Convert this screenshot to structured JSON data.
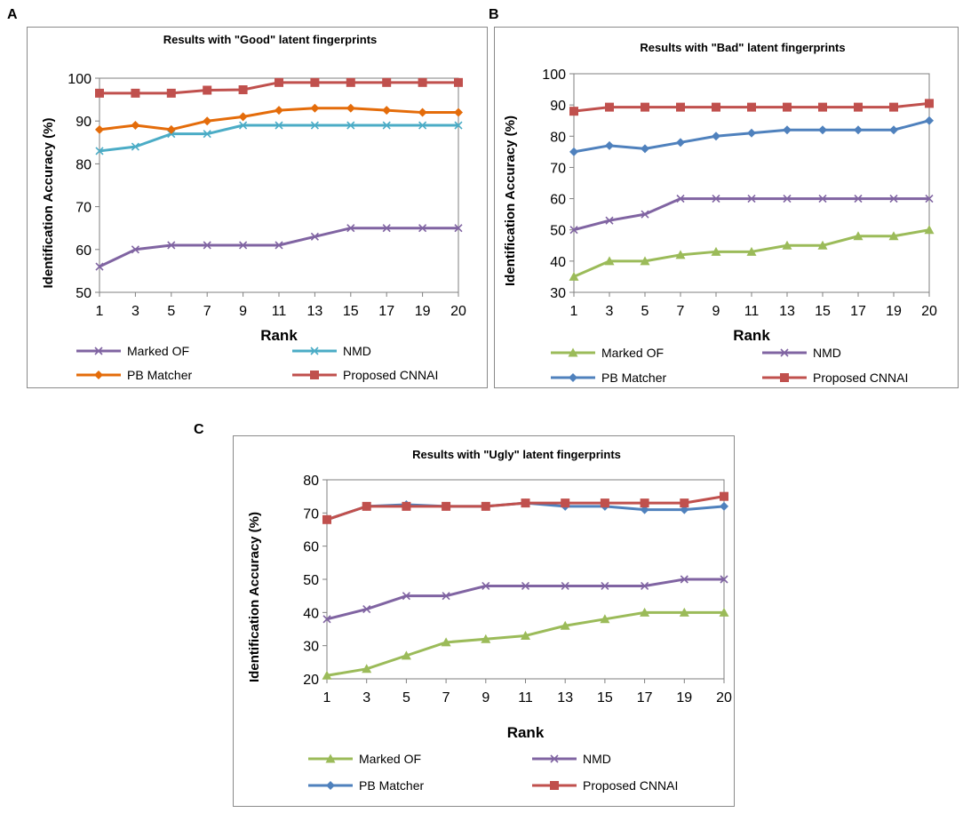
{
  "figure": {
    "panels": [
      "A",
      "B",
      "C"
    ]
  },
  "colors": {
    "Marked OF": "#9bbb59",
    "NMD": "#8064a2",
    "PB Matcher": "#4f81bd",
    "Proposed CNNAI": "#c0504d",
    "PB Matcher (A)": "#e46c0a",
    "NMD (A)": "#4bacc6"
  },
  "chart_data": [
    {
      "panel": "A",
      "type": "line",
      "title": "Results with \"Good\" latent fingerprints",
      "xlabel": "Rank",
      "ylabel": "Identification Accuracy (%)",
      "categories": [
        "1",
        "3",
        "5",
        "7",
        "9",
        "11",
        "13",
        "15",
        "17",
        "19",
        "20"
      ],
      "ylim": [
        50,
        100
      ],
      "yticks": [
        50,
        60,
        70,
        80,
        90,
        100
      ],
      "legend": [
        "Marked OF",
        "NMD",
        "PB Matcher",
        "Proposed CNNAI"
      ],
      "series": [
        {
          "name": "Marked OF",
          "color": "#8064a2",
          "marker": "x",
          "values": [
            56,
            60,
            61,
            61,
            61,
            61,
            63,
            65,
            65,
            65,
            65
          ]
        },
        {
          "name": "NMD",
          "color": "#4bacc6",
          "marker": "x",
          "values": [
            83,
            84,
            87,
            87,
            89,
            89,
            89,
            89,
            89,
            89,
            89
          ]
        },
        {
          "name": "PB Matcher",
          "color": "#e46c0a",
          "marker": "diamond",
          "values": [
            88,
            89,
            88,
            90,
            91,
            92.5,
            93,
            93,
            92.5,
            92,
            92
          ]
        },
        {
          "name": "Proposed CNNAI",
          "color": "#c0504d",
          "marker": "square",
          "values": [
            96.5,
            96.5,
            96.5,
            97.2,
            97.3,
            99,
            99,
            99,
            99,
            99,
            99
          ]
        }
      ]
    },
    {
      "panel": "B",
      "type": "line",
      "title": "Results with \"Bad\" latent fingerprints",
      "xlabel": "Rank",
      "ylabel": "Identification Accuracy (%)",
      "categories": [
        "1",
        "3",
        "5",
        "7",
        "9",
        "11",
        "13",
        "15",
        "17",
        "19",
        "20"
      ],
      "ylim": [
        30,
        100
      ],
      "yticks": [
        30,
        40,
        50,
        60,
        70,
        80,
        90,
        100
      ],
      "legend": [
        "Marked OF",
        "NMD",
        "PB Matcher",
        "Proposed CNNAI"
      ],
      "series": [
        {
          "name": "Marked OF",
          "color": "#9bbb59",
          "marker": "triangle",
          "values": [
            35,
            40,
            40,
            42,
            43,
            43,
            45,
            45,
            48,
            48,
            50
          ]
        },
        {
          "name": "NMD",
          "color": "#8064a2",
          "marker": "x",
          "values": [
            50,
            53,
            55,
            60,
            60,
            60,
            60,
            60,
            60,
            60,
            60
          ]
        },
        {
          "name": "PB Matcher",
          "color": "#4f81bd",
          "marker": "diamond",
          "values": [
            75,
            77,
            76,
            78,
            80,
            81,
            82,
            82,
            82,
            82,
            85
          ]
        },
        {
          "name": "Proposed CNNAI",
          "color": "#c0504d",
          "marker": "square",
          "values": [
            88,
            89.3,
            89.3,
            89.3,
            89.3,
            89.3,
            89.3,
            89.3,
            89.3,
            89.3,
            90.5
          ]
        }
      ]
    },
    {
      "panel": "C",
      "type": "line",
      "title": "Results with \"Ugly\" latent fingerprints",
      "xlabel": "Rank",
      "ylabel": "Identification Accuracy (%)",
      "categories": [
        "1",
        "3",
        "5",
        "7",
        "9",
        "11",
        "13",
        "15",
        "17",
        "19",
        "20"
      ],
      "ylim": [
        20,
        80
      ],
      "yticks": [
        20,
        30,
        40,
        50,
        60,
        70,
        80
      ],
      "legend": [
        "Marked OF",
        "NMD",
        "PB Matcher",
        "Proposed CNNAI"
      ],
      "series": [
        {
          "name": "Marked OF",
          "color": "#9bbb59",
          "marker": "triangle",
          "values": [
            21,
            23,
            27,
            31,
            32,
            33,
            36,
            38,
            40,
            40,
            40
          ]
        },
        {
          "name": "NMD",
          "color": "#8064a2",
          "marker": "x",
          "values": [
            38,
            41,
            45,
            45,
            48,
            48,
            48,
            48,
            48,
            50,
            50
          ]
        },
        {
          "name": "PB Matcher",
          "color": "#4f81bd",
          "marker": "diamond",
          "values": [
            68,
            72,
            72.5,
            72,
            72,
            73,
            72,
            72,
            71,
            71,
            72
          ]
        },
        {
          "name": "Proposed CNNAI",
          "color": "#c0504d",
          "marker": "square",
          "values": [
            68,
            72,
            72,
            72,
            72,
            73,
            73,
            73,
            73,
            73,
            75
          ]
        }
      ]
    }
  ]
}
